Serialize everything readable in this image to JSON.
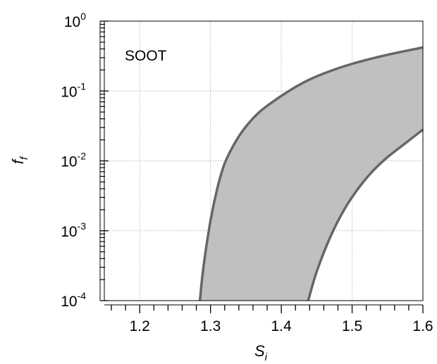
{
  "chart_data": {
    "type": "area",
    "title": "",
    "annotation": "SOOT",
    "xlabel": {
      "main": "S",
      "sub": "i"
    },
    "ylabel": {
      "main": "f",
      "sub": "f"
    },
    "xscale": "linear",
    "yscale": "log",
    "xlim": [
      1.15,
      1.6
    ],
    "ylim": [
      0.0001,
      1
    ],
    "grid": true,
    "x_ticks": [
      1.2,
      1.3,
      1.4,
      1.5,
      1.6
    ],
    "x_tick_labels": [
      "1.2",
      "1.3",
      "1.4",
      "1.5",
      "1.6"
    ],
    "y_ticks": [
      0.0001,
      0.001,
      0.01,
      0.1,
      1
    ],
    "y_tick_labels": [
      {
        "base": "10",
        "exp": "-4"
      },
      {
        "base": "10",
        "exp": "-3"
      },
      {
        "base": "10",
        "exp": "-2"
      },
      {
        "base": "10",
        "exp": "-1"
      },
      {
        "base": "10",
        "exp": "0"
      }
    ],
    "fill_color": "#c0c0c0",
    "line_color": "#666666",
    "series": [
      {
        "role": "upper-bound",
        "x": [
          1.285,
          1.29,
          1.3,
          1.31,
          1.32,
          1.335,
          1.35,
          1.37,
          1.4,
          1.43,
          1.46,
          1.5,
          1.55,
          1.6
        ],
        "y": [
          0.0001,
          0.0003,
          0.0014,
          0.0042,
          0.0092,
          0.0185,
          0.031,
          0.051,
          0.085,
          0.13,
          0.178,
          0.245,
          0.33,
          0.42
        ]
      },
      {
        "role": "lower-bound",
        "x": [
          1.438,
          1.45,
          1.47,
          1.49,
          1.51,
          1.53,
          1.55,
          1.575,
          1.6
        ],
        "y": [
          0.0001,
          0.00026,
          0.00085,
          0.0021,
          0.0042,
          0.0073,
          0.0113,
          0.0178,
          0.028
        ]
      }
    ]
  }
}
